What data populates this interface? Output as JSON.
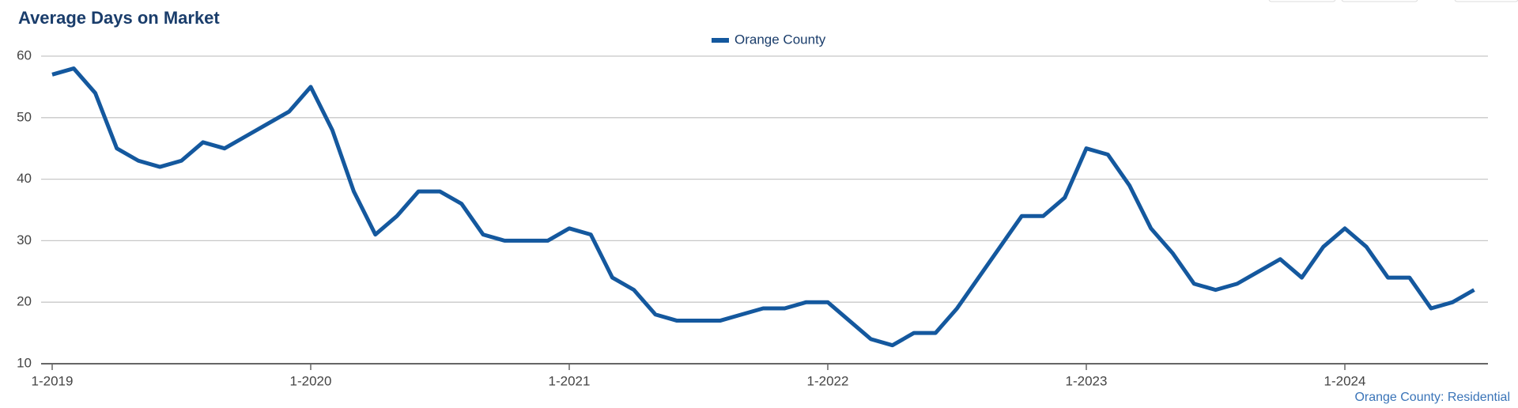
{
  "chart_data": {
    "type": "line",
    "title": "Average Days on Market",
    "source": "Orange County: Residential",
    "categories": [
      "1-2019",
      null,
      null,
      null,
      null,
      null,
      null,
      null,
      null,
      null,
      null,
      null,
      "1-2020",
      null,
      null,
      null,
      null,
      null,
      null,
      null,
      null,
      null,
      null,
      null,
      "1-2021",
      null,
      null,
      null,
      null,
      null,
      null,
      null,
      null,
      null,
      null,
      null,
      "1-2022",
      null,
      null,
      null,
      null,
      null,
      null,
      null,
      null,
      null,
      null,
      null,
      "1-2023",
      null,
      null,
      null,
      null,
      null,
      null,
      null,
      null,
      null,
      null,
      null,
      "1-2024",
      null,
      null,
      null,
      null,
      null,
      null
    ],
    "series": [
      {
        "name": "Orange County",
        "color": "#14589e",
        "values": [
          57,
          58,
          54,
          45,
          43,
          42,
          43,
          46,
          45,
          47,
          49,
          51,
          55,
          48,
          38,
          31,
          34,
          38,
          38,
          36,
          31,
          30,
          30,
          30,
          32,
          31,
          24,
          22,
          18,
          17,
          17,
          17,
          18,
          19,
          19,
          20,
          20,
          17,
          14,
          13,
          15,
          15,
          19,
          24,
          29,
          34,
          34,
          37,
          45,
          44,
          39,
          32,
          28,
          23,
          22,
          23,
          25,
          27,
          24,
          29,
          32,
          29,
          24,
          24,
          19,
          20,
          22
        ]
      }
    ],
    "ylim": [
      10,
      60
    ],
    "yticks": [
      10,
      20,
      30,
      40,
      50,
      60
    ],
    "grid": true,
    "legend": "top"
  }
}
